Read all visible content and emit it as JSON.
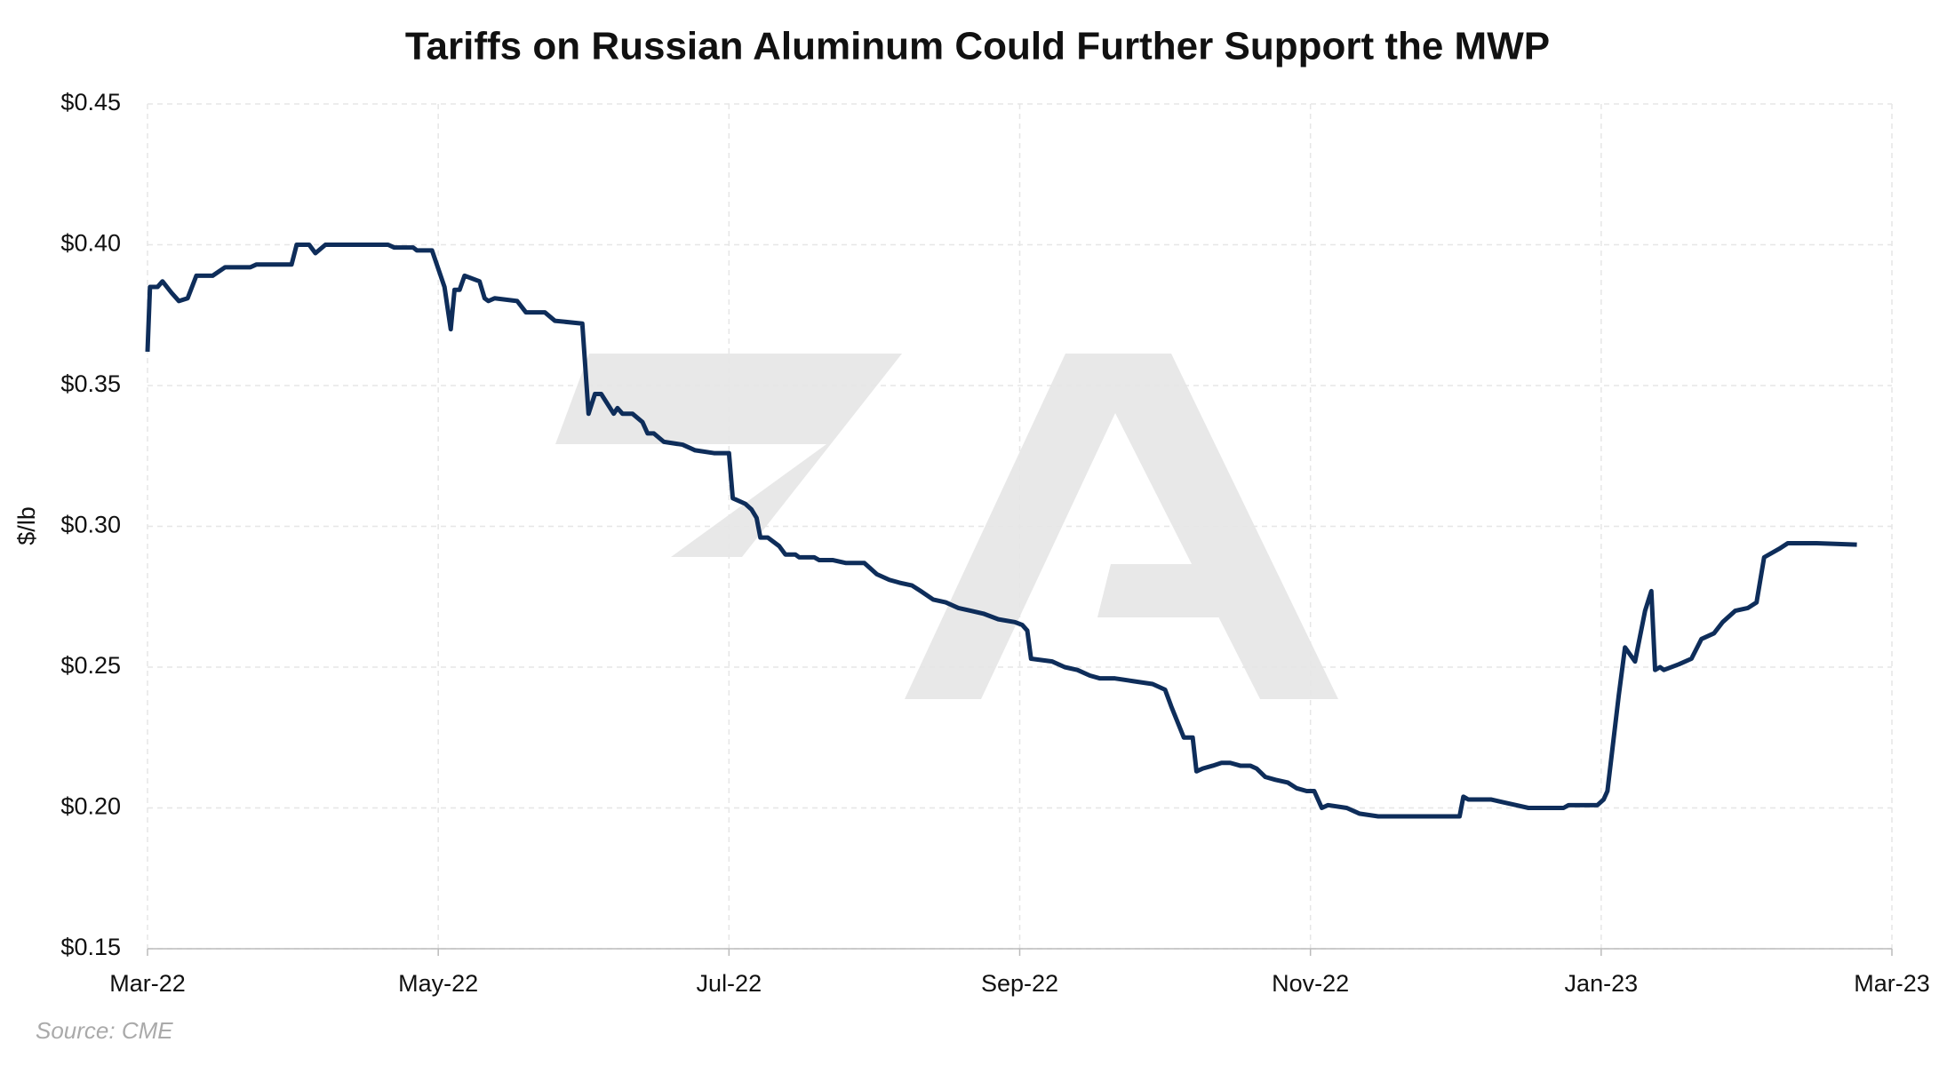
{
  "chart_data": {
    "type": "line",
    "title": "Tariffs on Russian Aluminum Could Further Support the MWP",
    "y_label": "$/lb",
    "source": "Source: CME",
    "color": "#0e2d5a",
    "grid": true,
    "x": [
      0,
      0.017,
      0.069,
      0.103,
      0.164,
      0.216,
      0.276,
      0.336,
      0.448,
      0.534,
      0.707,
      0.75,
      0.991,
      1.026,
      1.112,
      1.155,
      1.224,
      1.655,
      1.698,
      1.828,
      1.853,
      1.957,
      2.043,
      2.086,
      2.112,
      2.147,
      2.181,
      2.284,
      2.319,
      2.345,
      2.388,
      2.543,
      2.603,
      2.733,
      2.802,
      2.991,
      3.034,
      3.078,
      3.121,
      3.207,
      3.233,
      3.267,
      3.336,
      3.405,
      3.44,
      3.483,
      3.552,
      3.681,
      3.767,
      3.897,
      4.0,
      4.026,
      4.112,
      4.155,
      4.19,
      4.216,
      4.267,
      4.345,
      4.388,
      4.457,
      4.483,
      4.586,
      4.621,
      4.716,
      4.802,
      4.931,
      5.017,
      5.103,
      5.172,
      5.259,
      5.319,
      5.405,
      5.491,
      5.578,
      5.664,
      5.75,
      5.853,
      5.966,
      6.017,
      6.052,
      6.078,
      6.224,
      6.31,
      6.397,
      6.483,
      6.552,
      6.655,
      6.784,
      6.914,
      7.0,
      7.043,
      7.129,
      7.19,
      7.216,
      7.259,
      7.328,
      7.388,
      7.448,
      7.517,
      7.586,
      7.629,
      7.69,
      7.759,
      7.845,
      7.905,
      7.974,
      8.026,
      8.078,
      8.121,
      8.25,
      8.336,
      8.466,
      8.638,
      9.026,
      9.052,
      9.086,
      9.198,
      9.241,
      9.328,
      9.414,
      9.5,
      9.629,
      9.741,
      9.776,
      9.974,
      10.017,
      10.043,
      10.121,
      10.164,
      10.233,
      10.302,
      10.345,
      10.371,
      10.405,
      10.431,
      10.534,
      10.621,
      10.69,
      10.776,
      10.836,
      10.922,
      11.009,
      11.069,
      11.121,
      11.224,
      11.284,
      11.483,
      11.759
    ],
    "values": [
      0.362,
      0.385,
      0.385,
      0.387,
      0.383,
      0.38,
      0.381,
      0.389,
      0.389,
      0.392,
      0.392,
      0.393,
      0.393,
      0.4,
      0.4,
      0.397,
      0.4,
      0.4,
      0.399,
      0.399,
      0.398,
      0.398,
      0.385,
      0.37,
      0.384,
      0.384,
      0.389,
      0.387,
      0.381,
      0.38,
      0.381,
      0.38,
      0.376,
      0.376,
      0.373,
      0.372,
      0.34,
      0.347,
      0.347,
      0.34,
      0.342,
      0.34,
      0.34,
      0.337,
      0.333,
      0.333,
      0.33,
      0.329,
      0.327,
      0.326,
      0.326,
      0.31,
      0.308,
      0.306,
      0.303,
      0.296,
      0.296,
      0.293,
      0.29,
      0.29,
      0.289,
      0.289,
      0.288,
      0.288,
      0.287,
      0.287,
      0.283,
      0.281,
      0.28,
      0.279,
      0.277,
      0.274,
      0.273,
      0.271,
      0.27,
      0.269,
      0.267,
      0.266,
      0.265,
      0.263,
      0.253,
      0.252,
      0.25,
      0.249,
      0.247,
      0.246,
      0.246,
      0.245,
      0.244,
      0.242,
      0.236,
      0.225,
      0.225,
      0.213,
      0.214,
      0.215,
      0.216,
      0.216,
      0.215,
      0.215,
      0.214,
      0.211,
      0.21,
      0.209,
      0.207,
      0.206,
      0.206,
      0.2,
      0.201,
      0.2,
      0.198,
      0.197,
      0.197,
      0.197,
      0.204,
      0.203,
      0.203,
      0.203,
      0.202,
      0.201,
      0.2,
      0.2,
      0.2,
      0.201,
      0.201,
      0.203,
      0.206,
      0.24,
      0.257,
      0.252,
      0.27,
      0.277,
      0.249,
      0.25,
      0.249,
      0.251,
      0.253,
      0.26,
      0.262,
      0.266,
      0.27,
      0.271,
      0.273,
      0.289,
      0.292,
      0.294,
      0.294,
      0.2935
    ],
    "xlim": [
      0,
      12
    ],
    "xticks": [
      {
        "value": 0,
        "label": "Mar-22"
      },
      {
        "value": 2,
        "label": "May-22"
      },
      {
        "value": 4,
        "label": "Jul-22"
      },
      {
        "value": 6,
        "label": "Sep-22"
      },
      {
        "value": 8,
        "label": "Nov-22"
      },
      {
        "value": 10,
        "label": "Jan-23"
      },
      {
        "value": 12,
        "label": "Mar-23"
      }
    ],
    "ylim": [
      0.15,
      0.45
    ],
    "yticks": [
      {
        "value": 0.15,
        "label": "$0.15"
      },
      {
        "value": 0.2,
        "label": "$0.20"
      },
      {
        "value": 0.25,
        "label": "$0.25"
      },
      {
        "value": 0.3,
        "label": "$0.30"
      },
      {
        "value": 0.35,
        "label": "$0.35"
      },
      {
        "value": 0.4,
        "label": "$0.40"
      },
      {
        "value": 0.45,
        "label": "$0.45"
      }
    ]
  }
}
